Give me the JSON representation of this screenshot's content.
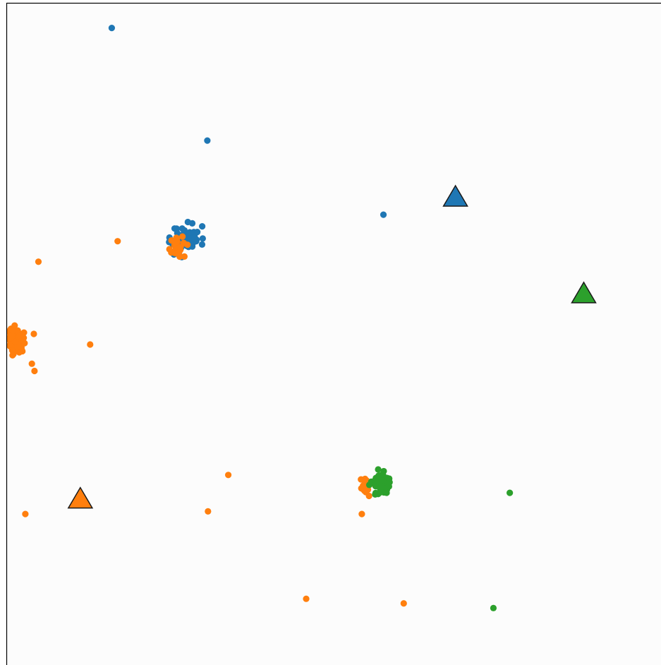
{
  "chart_data": {
    "type": "scatter",
    "title": "",
    "xlabel": "",
    "ylabel": "",
    "xlim": [
      0,
      100
    ],
    "ylim": [
      0,
      100
    ],
    "grid": false,
    "legend": "none",
    "colors": {
      "blue": "#1f77b4",
      "orange": "#ff7f0e",
      "green": "#2ca02c",
      "background": "#fcfcfc",
      "frame": "#000000"
    },
    "series": [
      {
        "color": "#1f77b4",
        "marker": "circle",
        "cluster": {
          "center": [
            27.5,
            64.5
          ],
          "spread": [
            1.9,
            1.6
          ],
          "count": 70,
          "seed": 11
        },
        "points": [
          [
            16.1,
            96.2
          ],
          [
            30.7,
            79.2
          ],
          [
            57.6,
            68.0
          ],
          [
            25.6,
            62.0
          ],
          [
            29.9,
            63.5
          ],
          [
            28.4,
            66.7
          ],
          [
            26.8,
            61.6
          ]
        ]
      },
      {
        "color": "#ff7f0e",
        "marker": "circle",
        "cluster": {
          "center": [
            26.4,
            63.0
          ],
          "spread": [
            1.0,
            1.4
          ],
          "count": 25,
          "seed": 23
        },
        "points": [
          [
            17.0,
            64.0
          ],
          [
            4.9,
            60.9
          ],
          [
            12.8,
            48.4
          ],
          [
            2.9,
            22.8
          ],
          [
            33.9,
            28.7
          ],
          [
            30.8,
            23.2
          ],
          [
            54.3,
            22.8
          ],
          [
            45.8,
            10.0
          ],
          [
            60.7,
            9.3
          ],
          [
            54.7,
            26.3
          ],
          [
            3.9,
            45.5
          ],
          [
            4.2,
            50.0
          ],
          [
            4.3,
            44.4
          ],
          [
            1.5,
            49.7
          ]
        ]
      },
      {
        "color": "#ff7f0e",
        "marker": "circle",
        "cluster": {
          "center": [
            1.4,
            49.0
          ],
          "spread": [
            1.1,
            1.7
          ],
          "count": 85,
          "seed": 37
        },
        "points": []
      },
      {
        "color": "#ff7f0e",
        "marker": "circle",
        "cluster": {
          "center": [
            54.9,
            27.2
          ],
          "spread": [
            0.8,
            1.3
          ],
          "count": 25,
          "seed": 41
        },
        "points": []
      },
      {
        "color": "#2ca02c",
        "marker": "circle",
        "cluster": {
          "center": [
            57.2,
            27.6
          ],
          "spread": [
            1.2,
            1.4
          ],
          "count": 85,
          "seed": 53
        },
        "points": [
          [
            76.9,
            26.0
          ],
          [
            74.4,
            8.6
          ]
        ]
      }
    ],
    "centroids": [
      {
        "color": "#1f77b4",
        "marker": "triangle",
        "point": [
          68.6,
          70.6
        ]
      },
      {
        "color": "#2ca02c",
        "marker": "triangle",
        "point": [
          88.2,
          56.0
        ]
      },
      {
        "color": "#ff7f0e",
        "marker": "triangle",
        "point": [
          11.3,
          25.0
        ]
      }
    ]
  }
}
